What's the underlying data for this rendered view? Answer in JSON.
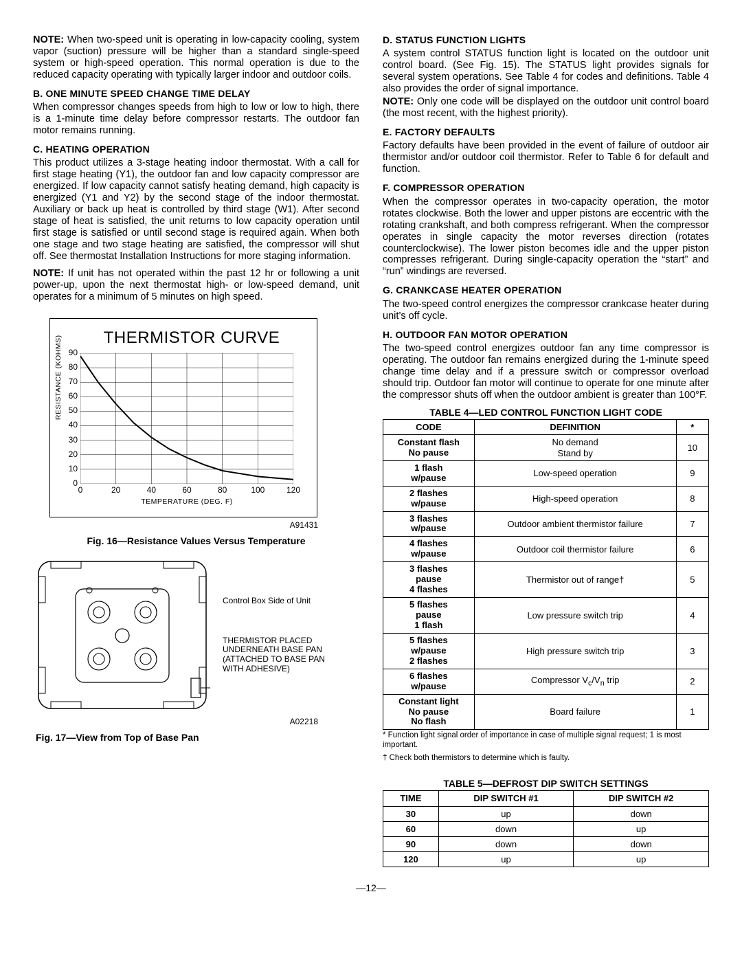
{
  "left": {
    "note1_bold": "NOTE:",
    "note1": " When two-speed unit is operating in low-capacity cooling, system vapor (suction) pressure will be higher than a standard single-speed system or high-speed operation. This normal operation is due to the reduced capacity operating with typically larger indoor and outdoor coils.",
    "secB_heading": "B.   ONE MINUTE SPEED CHANGE TIME DELAY",
    "secB_body": "When compressor changes speeds from high to low or low to high, there is a 1-minute time delay before compressor restarts. The outdoor fan motor remains running.",
    "secC_heading": "C.   HEATING OPERATION",
    "secC_body": "This product utilizes a 3-stage heating indoor thermostat. With a call for first stage heating (Y1), the outdoor fan and low capacity compressor are energized. If low capacity cannot satisfy heating demand, high capacity is energized (Y1 and Y2) by the second stage of the indoor thermostat. Auxiliary or back up heat is controlled by third stage (W1). After second stage of heat is satisfied, the unit returns to low capacity operation until first stage is satisfied or until second stage is required again. When both one stage and two stage heating are satisfied, the compressor will shut off. See thermostat Installation Instructions for more staging information.",
    "note2_bold": "NOTE:",
    "note2": " If unit has not operated within the past 12 hr or following a unit power-up, upon the next thermostat high- or low-speed demand, unit operates for a minimum of 5 minutes on high speed.",
    "chart": {
      "title": "THERMISTOR CURVE",
      "ylabel": "RESISTANCE (KOHMS)",
      "xlabel": "TEMPERATURE (DEG. F)",
      "y_ticks": [
        0,
        10,
        20,
        30,
        40,
        50,
        60,
        70,
        80,
        90
      ],
      "x_ticks": [
        0,
        20,
        40,
        60,
        80,
        100,
        120
      ],
      "y_max": 90,
      "x_max": 120,
      "curve_points": [
        [
          0,
          88
        ],
        [
          10,
          70
        ],
        [
          20,
          55
        ],
        [
          30,
          42
        ],
        [
          40,
          32
        ],
        [
          50,
          24
        ],
        [
          60,
          18
        ],
        [
          70,
          13
        ],
        [
          80,
          9
        ],
        [
          90,
          7
        ],
        [
          100,
          5
        ],
        [
          110,
          4
        ],
        [
          120,
          3
        ]
      ],
      "code": "A91431"
    },
    "fig16": "Fig. 16—Resistance Values Versus Temperature",
    "basepan": {
      "note_top": "Control Box Side of Unit",
      "note_bottom": "THERMISTOR PLACED UNDERNEATH BASE PAN (ATTACHED TO BASE PAN WITH ADHESIVE)",
      "code": "A02218"
    },
    "fig17": "Fig. 17—View from Top of Base Pan"
  },
  "right": {
    "secD_heading": "D.   STATUS FUNCTION LIGHTS",
    "secD_body": "A system control STATUS function light is located on the outdoor unit control board. (See Fig. 15). The STATUS light provides signals for several system operations. See Table 4 for codes and definitions. Table 4 also provides the order of signal importance.",
    "noteD_bold": "NOTE:",
    "noteD": " Only one code will be displayed on the outdoor unit control board (the most recent, with the highest priority).",
    "secE_heading": "E.   FACTORY DEFAULTS",
    "secE_body": "Factory defaults have been provided in the event of failure of outdoor air thermistor and/or outdoor coil thermistor. Refer to Table 6 for default and function.",
    "secF_heading": "F.   COMPRESSOR OPERATION",
    "secF_body": "When the compressor operates in two-capacity operation, the motor rotates clockwise. Both the lower and upper pistons are eccentric with the rotating crankshaft, and both compress refrigerant. When the compressor operates in single capacity the motor reverses direction (rotates counterclockwise). The lower piston becomes idle and the upper piston compresses refrigerant. During single-capacity operation the “start” and “run” windings are reversed.",
    "secG_heading": "G.   CRANKCASE HEATER OPERATION",
    "secG_body": "The two-speed control energizes the compressor crankcase heater during unit’s off cycle.",
    "secH_heading": "H.   OUTDOOR FAN MOTOR OPERATION",
    "secH_body": "The two-speed control energizes outdoor fan any time compressor is operating. The outdoor fan remains energized during the 1-minute speed change time delay and if a pressure switch or compressor overload should trip. Outdoor fan motor will continue to operate for one minute after the compressor shuts off when the outdoor ambient is greater than 100°F.",
    "table4": {
      "title": "TABLE 4—LED CONTROL FUNCTION LIGHT CODE",
      "headers": [
        "CODE",
        "DEFINITION",
        "*"
      ],
      "rows": [
        [
          "Constant flash<br>No pause",
          "No demand<br>Stand by",
          "10"
        ],
        [
          "1 flash<br>w/pause",
          "Low-speed operation",
          "9"
        ],
        [
          "2 flashes<br>w/pause",
          "High-speed operation",
          "8"
        ],
        [
          "3 flashes<br>w/pause",
          "Outdoor ambient thermistor failure",
          "7"
        ],
        [
          "4 flashes<br>w/pause",
          "Outdoor coil thermistor failure",
          "6"
        ],
        [
          "3 flashes<br>pause<br>4 flashes",
          "Thermistor out of range†",
          "5"
        ],
        [
          "5 flashes<br>pause<br>1 flash",
          "Low pressure switch trip",
          "4"
        ],
        [
          "5 flashes<br>w/pause<br>2 flashes",
          "High pressure switch trip",
          "3"
        ],
        [
          "6 flashes<br>w/pause",
          "Compressor V<sub>c</sub>/V<sub>n</sub> trip",
          "2"
        ],
        [
          "Constant light<br>No pause<br>No flash",
          "Board failure",
          "1"
        ]
      ],
      "foot1": "* Function light signal order of importance in case of multiple signal request; 1 is most important.",
      "foot2": "† Check both thermistors to determine which is faulty."
    },
    "table5": {
      "title": "TABLE 5—DEFROST DIP SWITCH SETTINGS",
      "headers": [
        "TIME",
        "DIP SWITCH #1",
        "DIP SWITCH #2"
      ],
      "rows": [
        [
          "30",
          "up",
          "down"
        ],
        [
          "60",
          "down",
          "up"
        ],
        [
          "90",
          "down",
          "down"
        ],
        [
          "120",
          "up",
          "up"
        ]
      ]
    }
  },
  "page_number": "—12—"
}
